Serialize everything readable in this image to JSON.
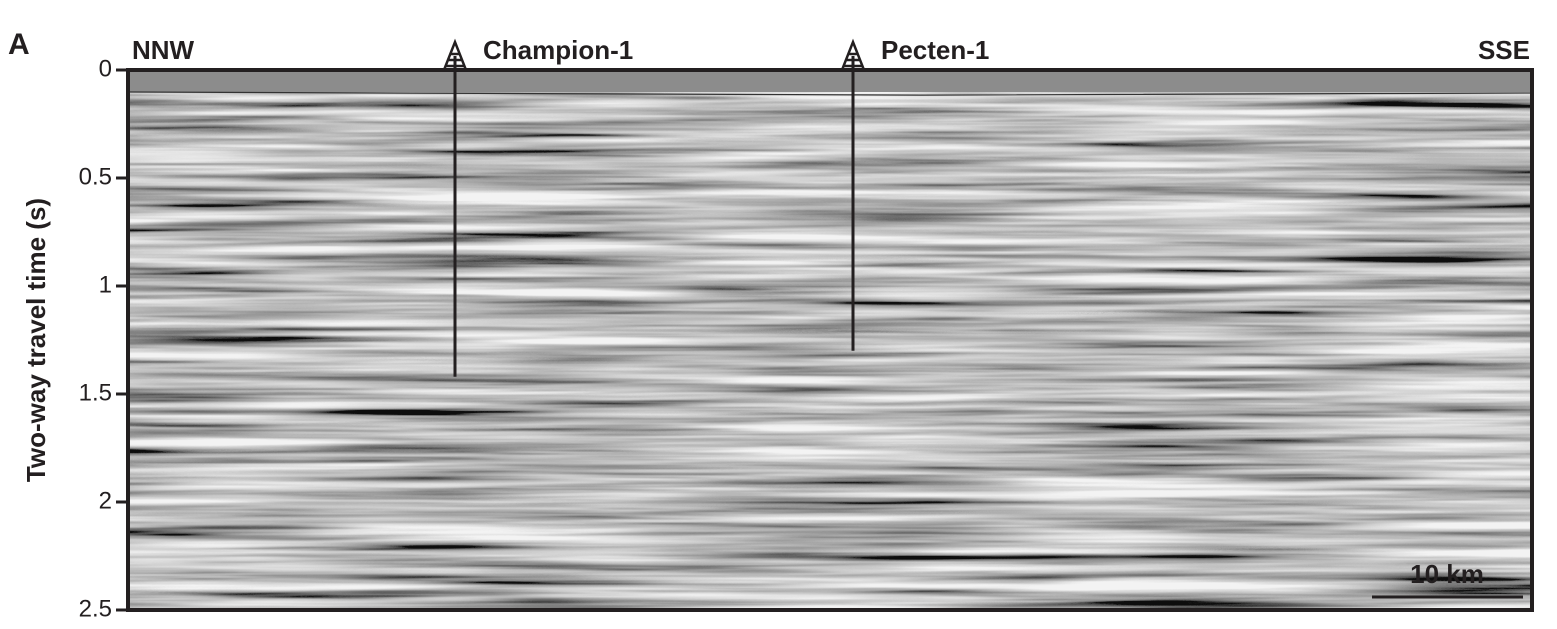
{
  "chart_data": {
    "type": "seismic-section",
    "panel_label": "A",
    "ylabel": "Two-way travel time (s)",
    "ylim": [
      0,
      2.5
    ],
    "yticks": [
      0,
      0.5,
      1,
      1.5,
      2,
      2.5
    ],
    "left_direction": "NNW",
    "right_direction": "SSE",
    "wells": [
      {
        "name": "Champion-1",
        "depth": 1.42
      },
      {
        "name": "Pecten-1",
        "depth": 1.3
      }
    ],
    "scale_bar": "10 km"
  }
}
